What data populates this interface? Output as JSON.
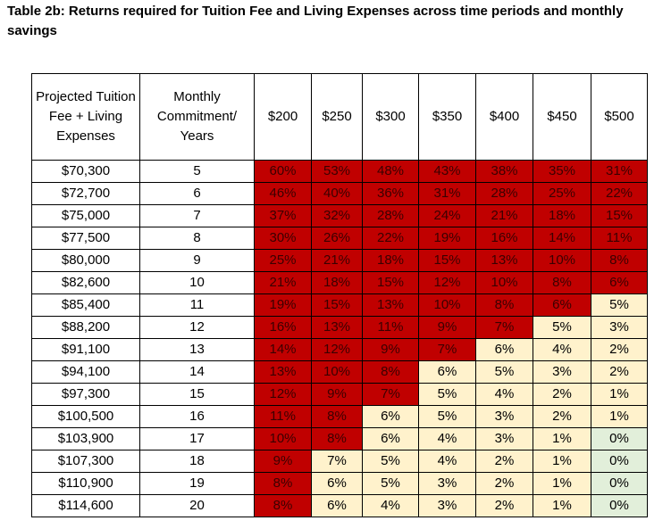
{
  "title": "Table 2b: Returns required for Tuition Fee and Living Expenses across time periods and monthly savings",
  "header": {
    "col1": "Projected Tuition Fee + Living Expenses",
    "col2": "Monthly Commitment/ Years",
    "savings": [
      "$200",
      "$250",
      "$300",
      "$350",
      "$400",
      "$450",
      "$500"
    ]
  },
  "colors": {
    "high": "#c00000",
    "mid": "#fff2cc",
    "zero": "#e2efda"
  },
  "rows": [
    {
      "fee": "$70,300",
      "years": "5",
      "returns": [
        "60%",
        "53%",
        "48%",
        "43%",
        "38%",
        "35%",
        "31%"
      ],
      "shade": [
        "r",
        "r",
        "r",
        "r",
        "r",
        "r",
        "r"
      ]
    },
    {
      "fee": "$72,700",
      "years": "6",
      "returns": [
        "46%",
        "40%",
        "36%",
        "31%",
        "28%",
        "25%",
        "22%"
      ],
      "shade": [
        "r",
        "r",
        "r",
        "r",
        "r",
        "r",
        "r"
      ]
    },
    {
      "fee": "$75,000",
      "years": "7",
      "returns": [
        "37%",
        "32%",
        "28%",
        "24%",
        "21%",
        "18%",
        "15%"
      ],
      "shade": [
        "r",
        "r",
        "r",
        "r",
        "r",
        "r",
        "r"
      ]
    },
    {
      "fee": "$77,500",
      "years": "8",
      "returns": [
        "30%",
        "26%",
        "22%",
        "19%",
        "16%",
        "14%",
        "11%"
      ],
      "shade": [
        "r",
        "r",
        "r",
        "r",
        "r",
        "r",
        "r"
      ]
    },
    {
      "fee": "$80,000",
      "years": "9",
      "returns": [
        "25%",
        "21%",
        "18%",
        "15%",
        "13%",
        "10%",
        "8%"
      ],
      "shade": [
        "r",
        "r",
        "r",
        "r",
        "r",
        "r",
        "r"
      ]
    },
    {
      "fee": "$82,600",
      "years": "10",
      "returns": [
        "21%",
        "18%",
        "15%",
        "12%",
        "10%",
        "8%",
        "6%"
      ],
      "shade": [
        "r",
        "r",
        "r",
        "r",
        "r",
        "r",
        "r"
      ]
    },
    {
      "fee": "$85,400",
      "years": "11",
      "returns": [
        "19%",
        "15%",
        "13%",
        "10%",
        "8%",
        "6%",
        "5%"
      ],
      "shade": [
        "r",
        "r",
        "r",
        "r",
        "r",
        "r",
        "c"
      ]
    },
    {
      "fee": "$88,200",
      "years": "12",
      "returns": [
        "16%",
        "13%",
        "11%",
        "9%",
        "7%",
        "5%",
        "3%"
      ],
      "shade": [
        "r",
        "r",
        "r",
        "r",
        "r",
        "c",
        "c"
      ]
    },
    {
      "fee": "$91,100",
      "years": "13",
      "returns": [
        "14%",
        "12%",
        "9%",
        "7%",
        "6%",
        "4%",
        "2%"
      ],
      "shade": [
        "r",
        "r",
        "r",
        "r",
        "c",
        "c",
        "c"
      ]
    },
    {
      "fee": "$94,100",
      "years": "14",
      "returns": [
        "13%",
        "10%",
        "8%",
        "6%",
        "5%",
        "3%",
        "2%"
      ],
      "shade": [
        "r",
        "r",
        "r",
        "c",
        "c",
        "c",
        "c"
      ]
    },
    {
      "fee": "$97,300",
      "years": "15",
      "returns": [
        "12%",
        "9%",
        "7%",
        "5%",
        "4%",
        "2%",
        "1%"
      ],
      "shade": [
        "r",
        "r",
        "r",
        "c",
        "c",
        "c",
        "c"
      ]
    },
    {
      "fee": "$100,500",
      "years": "16",
      "returns": [
        "11%",
        "8%",
        "6%",
        "5%",
        "3%",
        "2%",
        "1%"
      ],
      "shade": [
        "r",
        "r",
        "c",
        "c",
        "c",
        "c",
        "c"
      ]
    },
    {
      "fee": "$103,900",
      "years": "17",
      "returns": [
        "10%",
        "8%",
        "6%",
        "4%",
        "3%",
        "1%",
        "0%"
      ],
      "shade": [
        "r",
        "r",
        "c",
        "c",
        "c",
        "c",
        "g"
      ]
    },
    {
      "fee": "$107,300",
      "years": "18",
      "returns": [
        "9%",
        "7%",
        "5%",
        "4%",
        "2%",
        "1%",
        "0%"
      ],
      "shade": [
        "r",
        "c",
        "c",
        "c",
        "c",
        "c",
        "g"
      ]
    },
    {
      "fee": "$110,900",
      "years": "19",
      "returns": [
        "8%",
        "6%",
        "5%",
        "3%",
        "2%",
        "1%",
        "0%"
      ],
      "shade": [
        "r",
        "c",
        "c",
        "c",
        "c",
        "c",
        "g"
      ]
    },
    {
      "fee": "$114,600",
      "years": "20",
      "returns": [
        "8%",
        "6%",
        "4%",
        "3%",
        "2%",
        "1%",
        "0%"
      ],
      "shade": [
        "r",
        "c",
        "c",
        "c",
        "c",
        "c",
        "g"
      ]
    }
  ]
}
